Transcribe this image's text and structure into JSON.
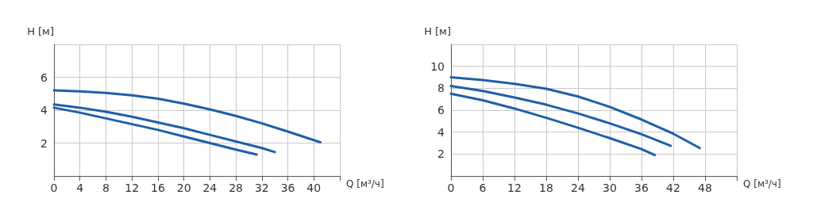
{
  "chart_data": [
    {
      "type": "line",
      "xlabel": "Q [м³/ч]",
      "ylabel": "H [м]",
      "xlim": [
        0,
        44
      ],
      "ylim": [
        0,
        8
      ],
      "xticks": [
        0,
        4,
        8,
        12,
        16,
        20,
        24,
        28,
        32,
        36,
        40,
        {
          "value": 44,
          "label": null
        }
      ],
      "yticks": [
        {
          "value": 0,
          "label": null
        },
        2,
        4,
        6,
        {
          "value": 8,
          "label": null
        }
      ],
      "grid": true,
      "marker": "none",
      "line_style": "solid",
      "series": [
        {
          "color": "#1f5fa8",
          "x": [
            0,
            4,
            8,
            12,
            16,
            20,
            24,
            28,
            32,
            36,
            41
          ],
          "values": [
            5.2,
            5.15,
            5.05,
            4.9,
            4.7,
            4.4,
            4.05,
            3.65,
            3.2,
            2.7,
            2.05
          ]
        },
        {
          "color": "#1f5fa8",
          "x": [
            0,
            4,
            8,
            12,
            16,
            20,
            24,
            28,
            32,
            34
          ],
          "values": [
            4.35,
            4.15,
            3.9,
            3.6,
            3.25,
            2.9,
            2.5,
            2.1,
            1.7,
            1.45
          ]
        },
        {
          "color": "#1f5fa8",
          "x": [
            0,
            4,
            8,
            12,
            16,
            20,
            24,
            28,
            31.2
          ],
          "values": [
            4.15,
            3.85,
            3.5,
            3.15,
            2.8,
            2.4,
            2.0,
            1.6,
            1.3
          ]
        }
      ]
    },
    {
      "type": "line",
      "xlabel": "Q [м³/ч]",
      "ylabel": "H [м]",
      "xlim": [
        0,
        54
      ],
      "ylim": [
        0,
        12
      ],
      "xticks": [
        0,
        6,
        12,
        18,
        24,
        30,
        36,
        42,
        48,
        {
          "value": 54,
          "label": null
        }
      ],
      "yticks": [
        {
          "value": 0,
          "label": null
        },
        2,
        4,
        6,
        8,
        10,
        {
          "value": 12,
          "label": null
        }
      ],
      "grid": true,
      "marker": "none",
      "line_style": "solid",
      "series": [
        {
          "color": "#1f5fa8",
          "x": [
            0,
            6,
            12,
            18,
            24,
            30,
            36,
            42,
            47
          ],
          "values": [
            9.0,
            8.75,
            8.4,
            7.95,
            7.25,
            6.3,
            5.15,
            3.85,
            2.55
          ]
        },
        {
          "color": "#1f5fa8",
          "x": [
            0,
            6,
            12,
            18,
            24,
            30,
            36,
            41.5
          ],
          "values": [
            8.2,
            7.75,
            7.15,
            6.5,
            5.7,
            4.8,
            3.8,
            2.75
          ]
        },
        {
          "color": "#1f5fa8",
          "x": [
            0,
            6,
            12,
            18,
            24,
            30,
            36,
            38.5
          ],
          "values": [
            7.5,
            6.9,
            6.15,
            5.3,
            4.4,
            3.45,
            2.45,
            1.9
          ]
        }
      ]
    }
  ]
}
